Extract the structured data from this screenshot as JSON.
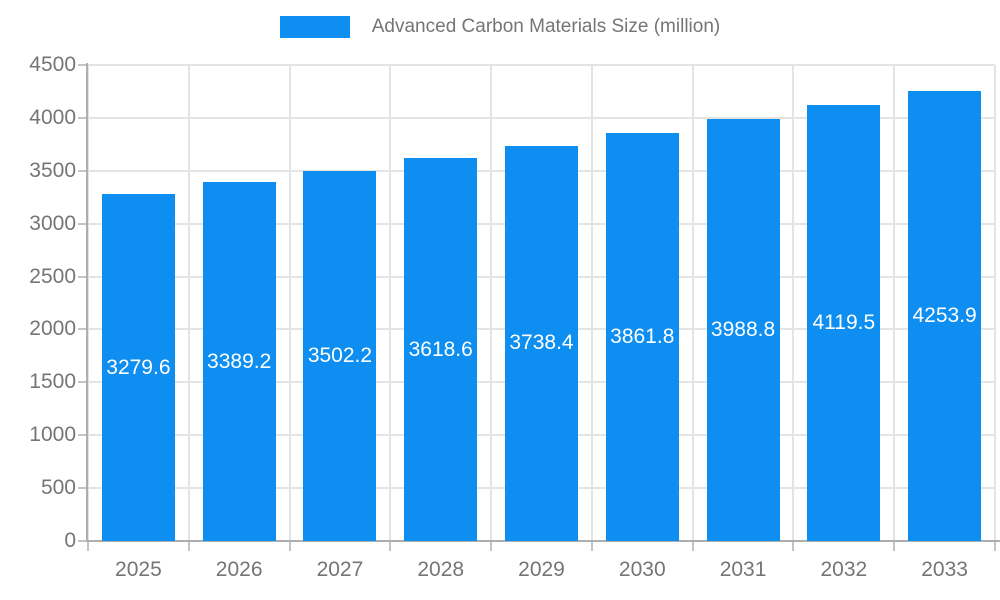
{
  "chart_data": {
    "type": "bar",
    "title": "Advanced Carbon Materials Size (million)",
    "legend": [
      "Advanced Carbon Materials Size (million)"
    ],
    "legend_position": "top",
    "categories": [
      "2025",
      "2026",
      "2027",
      "2028",
      "2029",
      "2030",
      "2031",
      "2032",
      "2033"
    ],
    "series": [
      {
        "name": "Advanced Carbon Materials Size (million)",
        "values": [
          3279.6,
          3389.2,
          3502.2,
          3618.6,
          3738.4,
          3861.8,
          3988.8,
          4119.5,
          4253.9
        ]
      }
    ],
    "value_labels": [
      "3279.6",
      "3389.2",
      "3502.2",
      "3618.6",
      "3738.4",
      "3861.8",
      "3988.8",
      "4119.5",
      "4253.9"
    ],
    "xlabel": "",
    "ylabel": "",
    "ylim": [
      0,
      4500
    ],
    "y_ticks": [
      0,
      500,
      1000,
      1500,
      2000,
      2500,
      3000,
      3500,
      4000,
      4500
    ],
    "y_tick_labels": [
      "0",
      "500",
      "1000",
      "1500",
      "2000",
      "2500",
      "3000",
      "3500",
      "4000",
      "4500"
    ],
    "grid": true,
    "colors": {
      "bar": "#0d8ef0",
      "bar_label_text": "#ffffff",
      "axis_text": "#757575",
      "grid_line": "#e4e4e4",
      "axis_line": "#aeaeae",
      "tick_mark": "#c4c4c4",
      "background": "#ffffff"
    }
  }
}
